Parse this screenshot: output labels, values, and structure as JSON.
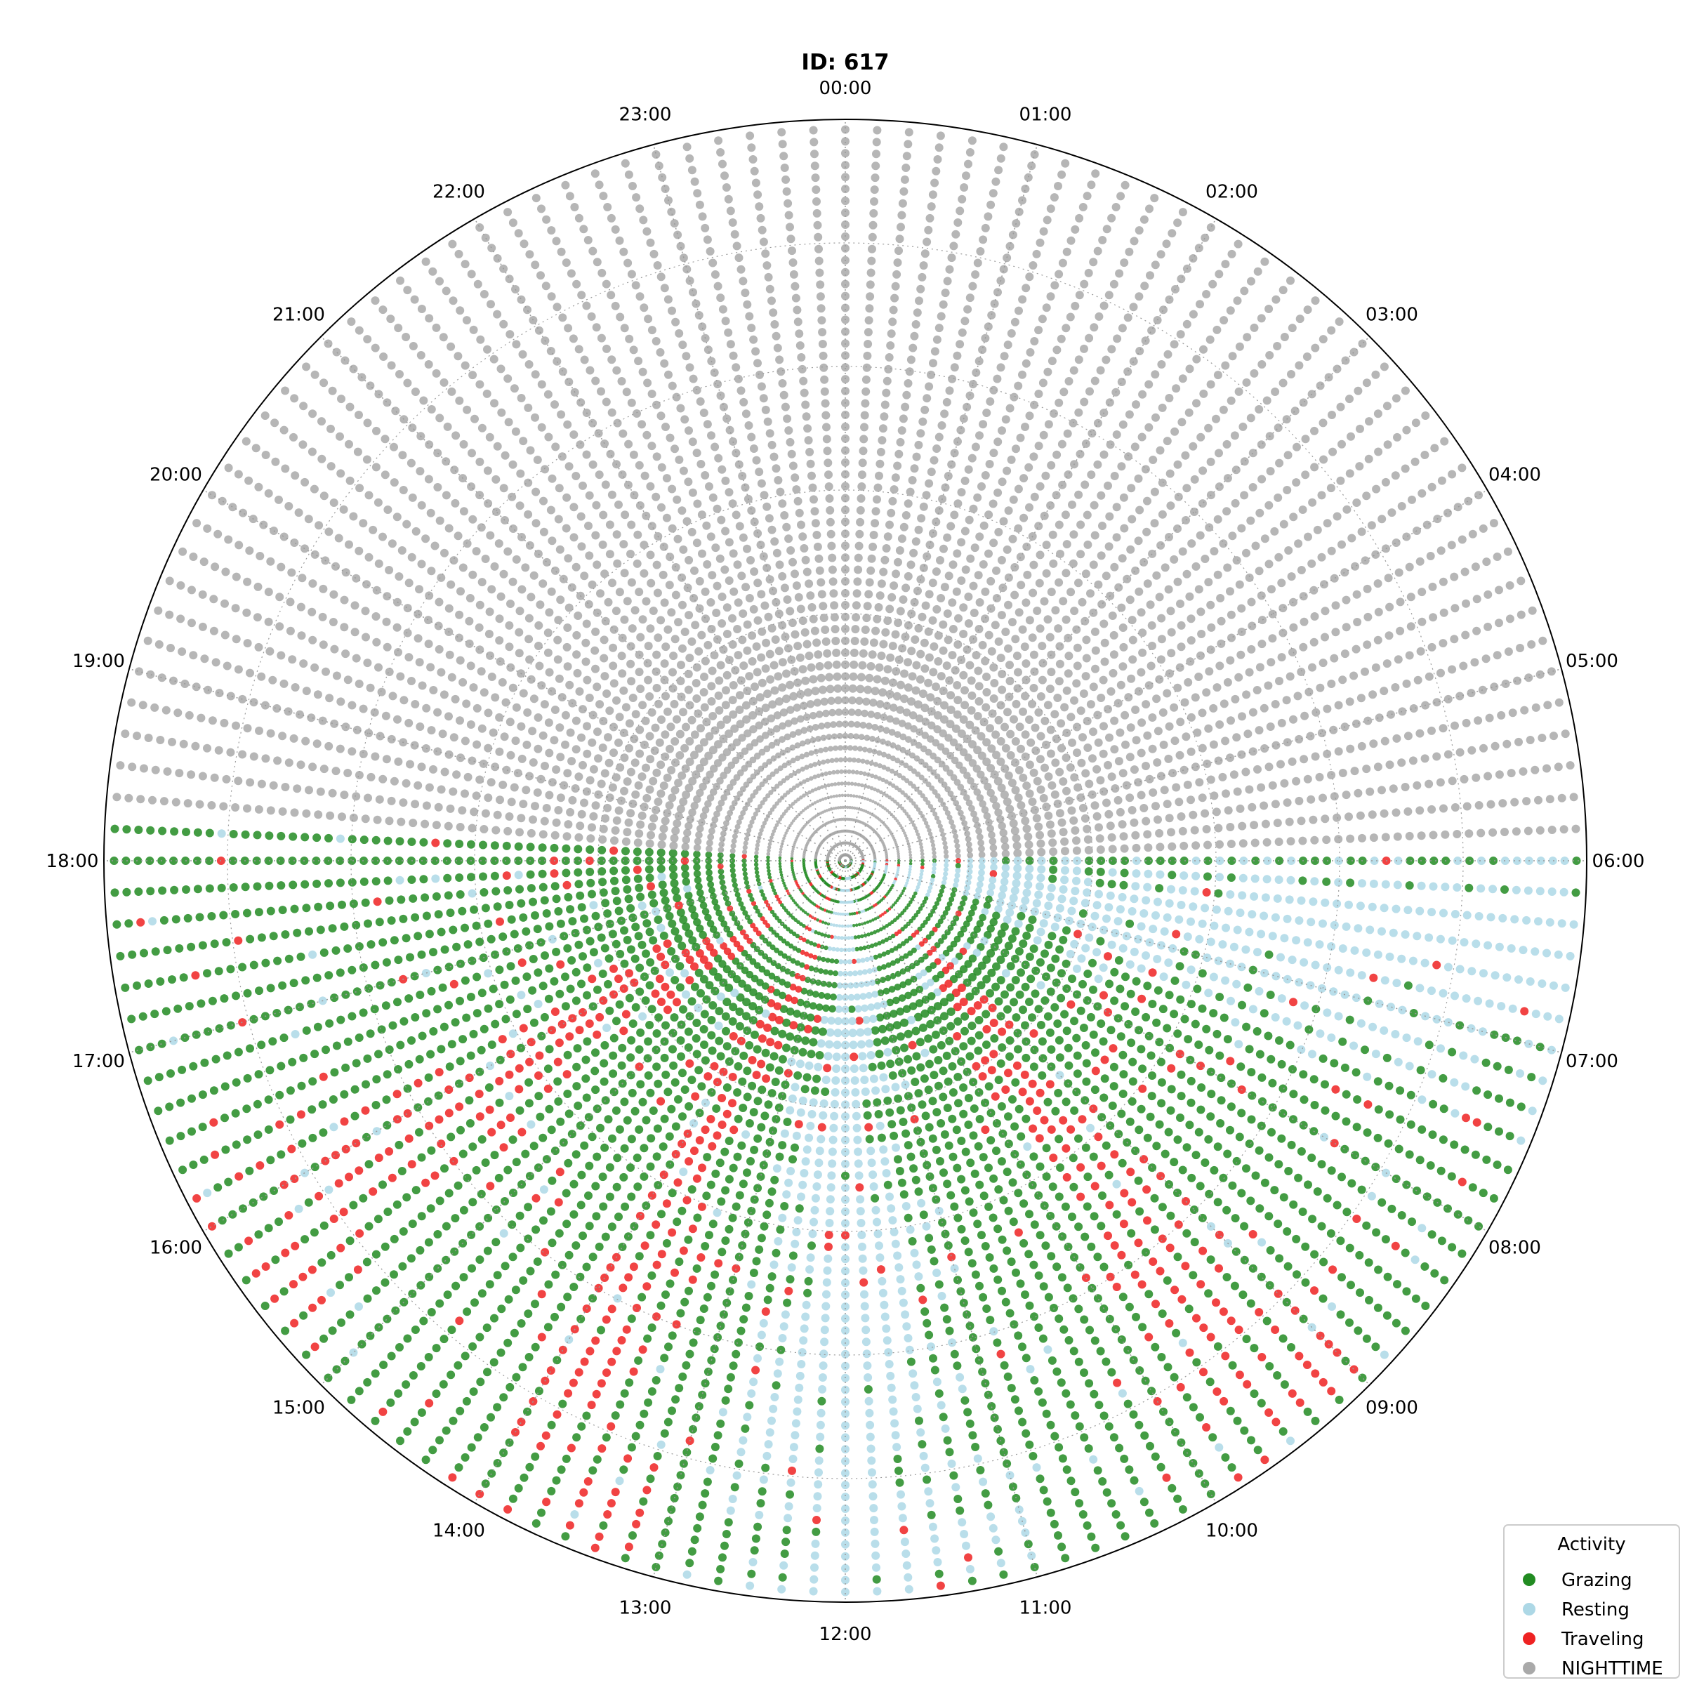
{
  "chart_data": {
    "type": "scatter",
    "projection": "polar",
    "title": "ID: 617",
    "theta_direction": "clockwise",
    "theta_zero": "top",
    "theta_ticks": [
      "00:00",
      "01:00",
      "02:00",
      "03:00",
      "04:00",
      "05:00",
      "06:00",
      "07:00",
      "08:00",
      "09:00",
      "10:00",
      "11:00",
      "12:00",
      "13:00",
      "14:00",
      "15:00",
      "16:00",
      "17:00",
      "18:00",
      "19:00",
      "20:00",
      "21:00",
      "22:00",
      "23:00"
    ],
    "radial_ticks_visible": false,
    "grid": "on",
    "n_days": 62,
    "interval_minutes": 10,
    "nighttime_hours": {
      "start": 18.25,
      "end": 6.0
    },
    "series": [
      {
        "name": "Grazing",
        "color": "#228B22"
      },
      {
        "name": "Resting",
        "color": "#ADD8E6"
      },
      {
        "name": "Traveling",
        "color": "#EE2222"
      },
      {
        "name": "NIGHTTIME",
        "color": "#A9A9A9"
      }
    ],
    "legend": {
      "title": "Activity",
      "position": "bottom-right"
    },
    "daily_activity_segments": [
      {
        "hour_start": 6.0,
        "hour_end": 7.3,
        "activity": "Resting"
      },
      {
        "hour_start": 7.3,
        "hour_end": 9.2,
        "activity": "Grazing"
      },
      {
        "hour_start": 9.2,
        "hour_end": 9.6,
        "activity": "Traveling"
      },
      {
        "hour_start": 9.6,
        "hour_end": 11.3,
        "activity": "Grazing"
      },
      {
        "hour_start": 11.3,
        "hour_end": 12.6,
        "activity": "Resting"
      },
      {
        "hour_start": 12.6,
        "hour_end": 13.5,
        "activity": "Grazing"
      },
      {
        "hour_start": 13.5,
        "hour_end": 13.9,
        "activity": "Traveling"
      },
      {
        "hour_start": 13.9,
        "hour_end": 15.6,
        "activity": "Grazing"
      },
      {
        "hour_start": 15.6,
        "hour_end": 16.0,
        "activity": "Traveling"
      },
      {
        "hour_start": 16.0,
        "hour_end": 18.25,
        "activity": "Grazing"
      }
    ]
  }
}
